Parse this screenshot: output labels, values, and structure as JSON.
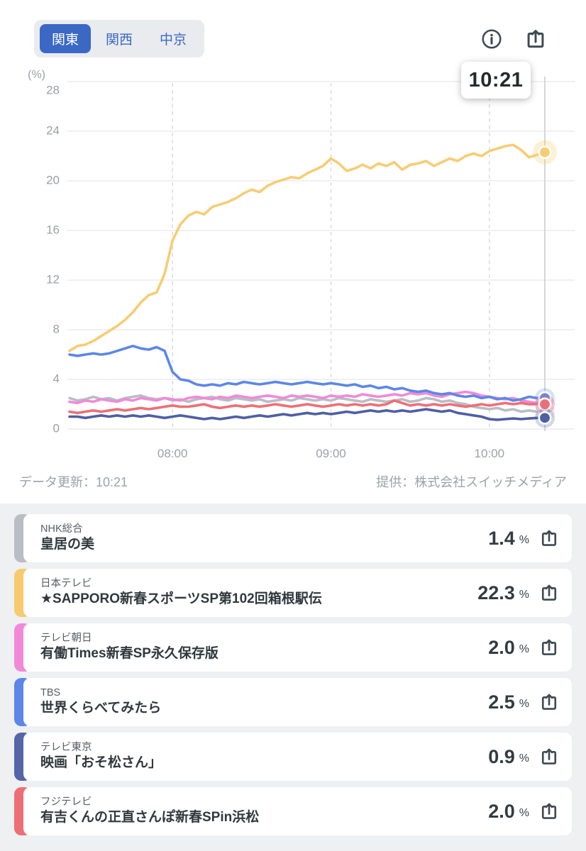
{
  "tabs": {
    "items": [
      {
        "label": "関東",
        "active": true
      },
      {
        "label": "関西",
        "active": false
      },
      {
        "label": "中京",
        "active": false
      }
    ]
  },
  "header": {
    "info_icon": "info-circle",
    "share_icon": "share-box-arrow-up"
  },
  "time_badge": "10:21",
  "footer": {
    "updated": "データ更新：10:21",
    "provider": "提供：株式会社スイッチメディア"
  },
  "colors": {
    "accent_blue": "#3b68c5",
    "grid": "#e6e8ea",
    "grid_dashed": "#d7dadd",
    "now_line": "#c9cdd1",
    "axis_text": "#9aa1a8",
    "list_bg": "#eef0f2"
  },
  "chart_data": {
    "type": "line",
    "ylabel": "(%)",
    "ylim": [
      0,
      28
    ],
    "y_ticks": [
      0,
      4,
      8,
      12,
      16,
      20,
      24,
      28
    ],
    "x_start": "07:21",
    "x_end": "10:21",
    "step_min": 3,
    "now_min": 180,
    "grid": true,
    "x_ticks": [
      {
        "label": "08:00",
        "min": 39
      },
      {
        "label": "09:00",
        "min": 99
      },
      {
        "label": "10:00",
        "min": 159
      }
    ],
    "series": [
      {
        "name": "NHK総合",
        "color": "#b9bdc5",
        "values": [
          2.5,
          2.3,
          2.4,
          2.6,
          2.4,
          2.5,
          2.3,
          2.5,
          2.6,
          2.7,
          2.5,
          2.4,
          2.5,
          2.3,
          2.4,
          2.2,
          2.4,
          2.5,
          2.6,
          2.4,
          2.3,
          2.5,
          2.4,
          2.3,
          2.4,
          2.2,
          2.3,
          2.4,
          2.3,
          2.5,
          2.4,
          2.3,
          2.4,
          2.3,
          2.5,
          2.4,
          2.3,
          2.2,
          2.4,
          2.3,
          2.2,
          2.3,
          2.4,
          2.2,
          2.3,
          2.5,
          2.4,
          2.2,
          2.3,
          2.1,
          2.0,
          1.8,
          1.7,
          1.6,
          1.7,
          1.5,
          1.6,
          1.4,
          1.5,
          1.4,
          1.4
        ]
      },
      {
        "name": "テレビ朝日",
        "color": "#f08ad8",
        "values": [
          2.2,
          2.1,
          2.3,
          2.2,
          2.4,
          2.3,
          2.2,
          2.4,
          2.3,
          2.5,
          2.4,
          2.3,
          2.5,
          2.4,
          2.3,
          2.5,
          2.6,
          2.5,
          2.4,
          2.6,
          2.5,
          2.7,
          2.6,
          2.5,
          2.6,
          2.7,
          2.6,
          2.5,
          2.7,
          2.6,
          2.7,
          2.6,
          2.5,
          2.7,
          2.6,
          2.7,
          2.6,
          2.8,
          2.7,
          2.6,
          2.7,
          2.8,
          2.7,
          2.9,
          2.8,
          2.9,
          2.7,
          2.6,
          2.8,
          2.9,
          3.0,
          2.9,
          2.7,
          2.6,
          2.5,
          2.4,
          2.5,
          2.3,
          2.2,
          2.1,
          2.0
        ]
      },
      {
        "name": "テレビ東京",
        "color": "#4e5fa4",
        "values": [
          1.0,
          1.0,
          0.9,
          1.0,
          1.1,
          1.0,
          1.1,
          1.0,
          1.1,
          1.0,
          1.1,
          1.0,
          0.9,
          1.0,
          1.1,
          1.0,
          0.9,
          0.8,
          0.9,
          0.8,
          0.9,
          1.0,
          0.9,
          1.0,
          1.1,
          1.0,
          1.1,
          1.2,
          1.1,
          1.2,
          1.3,
          1.2,
          1.3,
          1.2,
          1.3,
          1.4,
          1.3,
          1.4,
          1.5,
          1.4,
          1.5,
          1.4,
          1.5,
          1.4,
          1.5,
          1.6,
          1.5,
          1.4,
          1.5,
          1.3,
          1.2,
          1.1,
          1.0,
          0.8,
          0.75,
          0.8,
          0.85,
          0.8,
          0.85,
          0.9,
          0.9
        ]
      },
      {
        "name": "フジテレビ",
        "color": "#ed6f76",
        "values": [
          1.4,
          1.3,
          1.4,
          1.5,
          1.4,
          1.5,
          1.6,
          1.5,
          1.6,
          1.7,
          1.6,
          1.7,
          1.8,
          1.9,
          1.8,
          1.8,
          1.9,
          2.0,
          1.8,
          1.7,
          1.8,
          1.9,
          1.8,
          1.9,
          1.8,
          1.9,
          2.0,
          1.9,
          1.8,
          1.9,
          2.0,
          1.9,
          1.8,
          1.9,
          2.0,
          1.9,
          2.0,
          1.9,
          2.0,
          1.9,
          2.0,
          2.3,
          2.1,
          1.9,
          2.0,
          1.9,
          2.0,
          1.9,
          2.0,
          1.9,
          1.8,
          1.9,
          2.0,
          1.9,
          2.0,
          2.1,
          2.0,
          2.1,
          2.0,
          2.0,
          2.0
        ]
      },
      {
        "name": "TBS",
        "color": "#5c87e8",
        "values": [
          6.0,
          5.9,
          6.0,
          6.1,
          6.0,
          6.1,
          6.3,
          6.5,
          6.7,
          6.5,
          6.4,
          6.6,
          6.3,
          4.6,
          4.0,
          3.9,
          3.6,
          3.5,
          3.6,
          3.5,
          3.7,
          3.6,
          3.8,
          3.7,
          3.6,
          3.7,
          3.8,
          3.7,
          3.6,
          3.7,
          3.8,
          3.7,
          3.6,
          3.7,
          3.6,
          3.5,
          3.6,
          3.4,
          3.5,
          3.3,
          3.4,
          3.2,
          3.3,
          3.1,
          3.0,
          3.1,
          2.9,
          2.8,
          2.9,
          2.7,
          2.6,
          2.7,
          2.5,
          2.6,
          2.4,
          2.5,
          2.3,
          2.4,
          2.6,
          2.5,
          2.5
        ]
      },
      {
        "name": "日本テレビ",
        "color": "#f6cd74",
        "values": [
          6.3,
          6.7,
          6.8,
          7.1,
          7.5,
          7.9,
          8.3,
          8.8,
          9.4,
          10.2,
          10.8,
          11.0,
          12.5,
          15.2,
          16.5,
          17.2,
          17.5,
          17.3,
          17.9,
          18.1,
          18.3,
          18.6,
          19.0,
          19.3,
          19.1,
          19.6,
          19.9,
          20.1,
          20.3,
          20.2,
          20.6,
          20.9,
          21.2,
          21.8,
          21.4,
          20.8,
          21.0,
          21.3,
          21.0,
          21.4,
          21.2,
          21.5,
          20.9,
          21.3,
          21.4,
          21.6,
          21.2,
          21.5,
          21.8,
          21.6,
          22.0,
          22.2,
          22.0,
          22.4,
          22.6,
          22.8,
          22.9,
          22.5,
          21.9,
          22.1,
          22.3
        ]
      }
    ]
  },
  "channels": [
    {
      "name": "NHK総合",
      "program": "皇居の美",
      "value": "1.4",
      "unit": "%",
      "color": "#b9bdc5"
    },
    {
      "name": "日本テレビ",
      "program": "★SAPPORO新春スポーツSP第102回箱根駅伝",
      "value": "22.3",
      "unit": "%",
      "color": "#f7cb6d"
    },
    {
      "name": "テレビ朝日",
      "program": "有働Times新春SP永久保存版",
      "value": "2.0",
      "unit": "%",
      "color": "#f08ad8"
    },
    {
      "name": "TBS",
      "program": "世界くらべてみたら",
      "value": "2.5",
      "unit": "%",
      "color": "#5c87e8"
    },
    {
      "name": "テレビ東京",
      "program": "映画「おそ松さん」",
      "value": "0.9",
      "unit": "%",
      "color": "#5565a8"
    },
    {
      "name": "フジテレビ",
      "program": "有吉くんの正直さんぽ新春SPin浜松",
      "value": "2.0",
      "unit": "%",
      "color": "#ed6f76"
    }
  ]
}
